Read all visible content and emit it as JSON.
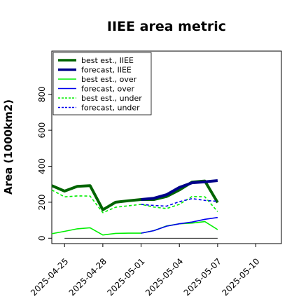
{
  "chart_data": {
    "type": "line",
    "title": "IIEE area metric",
    "xlabel": "",
    "ylabel": "Area (1000km2)",
    "xlim": [
      "2025-04-24",
      "2025-05-12"
    ],
    "ylim": [
      -30,
      1040
    ],
    "yticks": [
      0,
      200,
      400,
      600,
      800
    ],
    "xticks": [
      "2025-04-25",
      "2025-04-28",
      "2025-05-01",
      "2025-05-04",
      "2025-05-07",
      "2025-05-10"
    ],
    "highlighted_xtick": "2025-05-01",
    "highlight_color": "#228b22",
    "grid": false,
    "legend_position": "upper-left",
    "series": [
      {
        "name": "best est., IIEE",
        "color": "#006400",
        "style": "solid",
        "width": 4,
        "x": [
          "2025-04-24",
          "2025-04-25",
          "2025-04-26",
          "2025-04-27",
          "2025-04-28",
          "2025-04-29",
          "2025-04-30",
          "2025-05-01",
          "2025-05-02",
          "2025-05-03",
          "2025-05-04",
          "2025-05-05",
          "2025-05-06",
          "2025-05-07"
        ],
        "values": [
          292,
          262,
          288,
          292,
          158,
          200,
          208,
          215,
          215,
          232,
          268,
          312,
          318,
          198
        ]
      },
      {
        "name": "forecast, IIEE",
        "color": "#00008b",
        "style": "solid",
        "width": 4,
        "x": [
          "2025-05-01",
          "2025-05-02",
          "2025-05-03",
          "2025-05-04",
          "2025-05-05",
          "2025-05-06",
          "2025-05-07"
        ],
        "values": [
          215,
          222,
          242,
          282,
          308,
          313,
          320
        ]
      },
      {
        "name": "best est., over",
        "color": "#00ee00",
        "style": "solid",
        "width": 1.6,
        "x": [
          "2025-04-24",
          "2025-04-25",
          "2025-04-26",
          "2025-04-27",
          "2025-04-28",
          "2025-04-29",
          "2025-04-30",
          "2025-05-01",
          "2025-05-02",
          "2025-05-03",
          "2025-05-04",
          "2025-05-05",
          "2025-05-06",
          "2025-05-07"
        ],
        "values": [
          25,
          38,
          52,
          58,
          18,
          27,
          28,
          28,
          42,
          68,
          80,
          84,
          92,
          48
        ]
      },
      {
        "name": "forecast, over",
        "color": "#0000ee",
        "style": "solid",
        "width": 1.6,
        "x": [
          "2025-05-01",
          "2025-05-02",
          "2025-05-03",
          "2025-05-04",
          "2025-05-05",
          "2025-05-06",
          "2025-05-07"
        ],
        "values": [
          28,
          42,
          67,
          80,
          90,
          105,
          115
        ]
      },
      {
        "name": "best est., under",
        "color": "#00ee00",
        "style": "dashed",
        "width": 1.6,
        "x": [
          "2025-04-24",
          "2025-04-25",
          "2025-04-26",
          "2025-04-27",
          "2025-04-28",
          "2025-04-29",
          "2025-04-30",
          "2025-05-01",
          "2025-05-02",
          "2025-05-03",
          "2025-05-04",
          "2025-05-05",
          "2025-05-06",
          "2025-05-07"
        ],
        "values": [
          268,
          230,
          235,
          234,
          142,
          172,
          180,
          188,
          173,
          165,
          188,
          232,
          230,
          148
        ]
      },
      {
        "name": "forecast, under",
        "color": "#0000ee",
        "style": "dashed",
        "width": 1.6,
        "x": [
          "2025-05-01",
          "2025-05-02",
          "2025-05-03",
          "2025-05-04",
          "2025-05-05",
          "2025-05-06",
          "2025-05-07"
        ],
        "values": [
          188,
          182,
          178,
          203,
          220,
          210,
          205
        ]
      },
      {
        "name": "",
        "color": "#000000",
        "style": "solid",
        "width": 0.8,
        "legend": false,
        "x": [
          "2025-04-25",
          "2025-05-07"
        ],
        "values": [
          0,
          0
        ]
      }
    ]
  }
}
